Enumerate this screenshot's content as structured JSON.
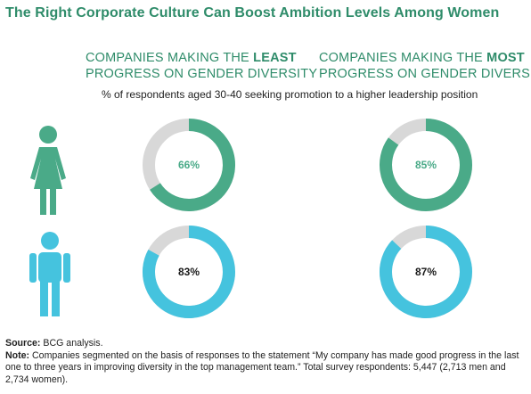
{
  "title": "The Right Corporate Culture Can Boost Ambition Levels Among Women",
  "columns": {
    "left": {
      "line1_pre": "COMPANIES MAKING THE ",
      "line1_bold": "LEAST",
      "line2": "PROGRESS ON GENDER DIVERSITY"
    },
    "right": {
      "line1_pre": "COMPANIES MAKING THE ",
      "line1_bold": "MOST",
      "line2": "PROGRESS ON GENDER DIVERSITY"
    }
  },
  "subtitle": "% of respondents aged 30-40 seeking promotion to a higher leadership position",
  "icons": {
    "woman": "woman-icon",
    "man": "man-icon"
  },
  "colors": {
    "women": "#4aaa88",
    "men": "#45c3de",
    "remainder": "#d8d8d8",
    "title": "#2f8c6a",
    "women_label": "#4aaa88",
    "men_label": "#1a1a1a"
  },
  "chart_data": {
    "type": "donut",
    "categories": [
      "Companies making the least progress on gender diversity",
      "Companies making the most progress on gender diversity"
    ],
    "series": [
      {
        "name": "Women",
        "values": [
          66,
          85
        ]
      },
      {
        "name": "Men",
        "values": [
          83,
          87
        ]
      }
    ],
    "labels": {
      "Women": [
        "66%",
        "85%"
      ],
      "Men": [
        "83%",
        "87%"
      ]
    },
    "unit": "%"
  },
  "footer": {
    "source_label": "Source:",
    "source_text": " BCG analysis.",
    "note_label": "Note:",
    "note_text": " Companies segmented on the basis of responses to the statement “My company has made good progress in the last one to three years in improving diversity in the top management team.” Total survey respondents: 5,447 (2,713 men and 2,734 women)."
  }
}
